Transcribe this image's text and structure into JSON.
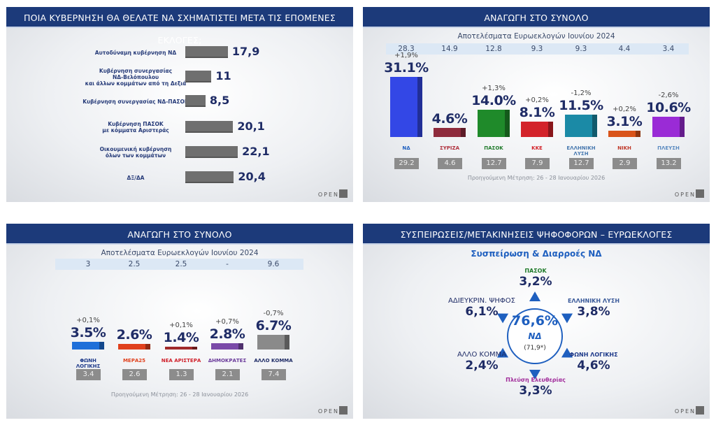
{
  "colors": {
    "header": "#1c3a7a",
    "value_text": "#1f2c66",
    "prev_box": "#8c8c8c",
    "band": "#dce8f5"
  },
  "brand": "OPEN",
  "chart_data": [
    {
      "type": "bar",
      "orientation": "horizontal",
      "title": "ΠΟΙΑ ΚΥΒΕΡΝΗΣΗ ΘΑ ΘΕΛΑΤΕ ΝΑ ΣΧΗΜΑΤΙΣΤΕΙ ΜΕΤΑ ΤΙΣ ΕΠΟΜΕΝΕΣ ΕΚΛΟΓΕΣ;",
      "categories": [
        [
          "Αυτοδύναμη κυβέρνηση ΝΔ"
        ],
        [
          "Κυβέρνηση συνεργασίας",
          "ΝΔ-Βελόπουλου",
          "και άλλων κομμάτων από τη Δεξιά"
        ],
        [
          "Κυβέρνηση συνεργασίας ΝΔ-ΠΑΣΟΚ"
        ],
        [
          "Κυβέρνηση ΠΑΣΟΚ",
          "με κόμματα Αριστεράς"
        ],
        [
          "Οικουμενική κυβέρνηση",
          "όλων των κομμάτων"
        ],
        [
          "ΔΞ/ΔΑ"
        ]
      ],
      "values": [
        17.9,
        11,
        8.5,
        20.1,
        22.1,
        20.4
      ],
      "value_labels": [
        "17,9",
        "11",
        "8,5",
        "20,1",
        "22,1",
        "20,4"
      ],
      "bar_color": "#6f6f6f"
    },
    {
      "type": "bar",
      "title": "ΑΝΑΓΩΓΗ ΣΤΟ ΣΥΝΟΛΟ",
      "subtitle": "Αποτελέσματα Ευρωεκλογών Ιουνίου 2024",
      "euro_2024": [
        "28.3",
        "14.9",
        "12.8",
        "9.3",
        "9.3",
        "4.4",
        "3.4"
      ],
      "parties": [
        "ΝΔ",
        "ΣΥΡΙΖΑ",
        "ΠΑΣΟΚ",
        "ΚΚΕ",
        "ΕΛΛΗΝΙΚΗ ΛΥΣΗ",
        "ΝΙΚΗ",
        "ΠΛΕΥΣΗ"
      ],
      "values": [
        31.1,
        4.6,
        14.0,
        8.1,
        11.5,
        3.1,
        10.6
      ],
      "value_labels": [
        "31.1%",
        "4.6%",
        "14.0%",
        "8.1%",
        "11.5%",
        "3.1%",
        "10.6%"
      ],
      "changes": [
        "+1,9%",
        "",
        "+1,3%",
        "+0,2%",
        "-1,2%",
        "+0,2%",
        "-2,6%"
      ],
      "previous": [
        "29.2",
        "4.6",
        "12.7",
        "7.9",
        "12.7",
        "2.9",
        "13.2"
      ],
      "colors": [
        "#3347e6",
        "#8e2a3c",
        "#1f8a2a",
        "#d3232a",
        "#1b8aa6",
        "#d9541a",
        "#9a2bd6"
      ],
      "logo_colors": [
        "#1e5fbf",
        "#b0303c",
        "#1f7a2a",
        "#d3232a",
        "#4a7ab0",
        "#c03a2a",
        "#5a8ac0"
      ],
      "footnote": "Προηγούμενη Μέτρηση: 26 - 28 Ιανουαρίου 2026"
    },
    {
      "type": "bar",
      "title": "ΑΝΑΓΩΓΗ ΣΤΟ ΣΥΝΟΛΟ",
      "subtitle": "Αποτελέσματα Ευρωεκλογών Ιουνίου 2024",
      "euro_2024": [
        "3",
        "2.5",
        "2.5",
        "-",
        "9.6"
      ],
      "parties": [
        "ΦΩΝΗ ΛΟΓΙΚΗΣ",
        "ΜΕΡΑ25",
        "ΝΕΑ ΑΡΙΣΤΕΡΑ",
        "ΔΗΜΟΚΡΑΤΕΣ",
        "ΑΛΛΟ ΚΟΜΜΑ"
      ],
      "values": [
        3.5,
        2.6,
        1.4,
        2.8,
        6.7
      ],
      "value_labels": [
        "3.5%",
        "2.6%",
        "1.4%",
        "2.8%",
        "6.7%"
      ],
      "changes": [
        "+0,1%",
        "",
        "+0,1%",
        "+0,7%",
        "-0,7%"
      ],
      "previous": [
        "3.4",
        "2.6",
        "1.3",
        "2.1",
        "7.4"
      ],
      "colors": [
        "#1e6fd9",
        "#e0401c",
        "#a02a2a",
        "#7a4aa8",
        "#8a8a8a"
      ],
      "logo_colors": [
        "#1e3a8a",
        "#e0401c",
        "#d0202a",
        "#6a3a9a",
        "#1f2c66"
      ],
      "footnote": "Προηγούμενη Μέτρηση: 26 - 28 Ιανουαρίου 2026"
    },
    {
      "type": "diagram",
      "title": "ΣΥΣΠΕΙΡΩΣΕΙΣ/ΜΕΤΑΚΙΝΗΣΕΙΣ ΨΗΦΟΦΟΡΩΝ – ΕΥΡΩΕΚΛΟΓΕΣ",
      "subtitle": "Συσπείρωση & Διαρροές ΝΔ",
      "center": {
        "value": "76,6%",
        "party": "ΝΔ",
        "previous": "(71,9*)"
      },
      "flows": [
        {
          "label": "ΠΑΣΟΚ",
          "value": "3,2%",
          "is_logo": true,
          "color": "#1f7a2a"
        },
        {
          "label": "ΕΛΛΗΝΙΚΗ ΛΥΣΗ",
          "value": "3,8%",
          "is_logo": true,
          "color": "#3a5a9a"
        },
        {
          "label": "ΦΩΝΗ ΛΟΓΙΚΗΣ",
          "value": "4,6%",
          "is_logo": true,
          "color": "#1e3a8a"
        },
        {
          "label": "Πλεύση Ελευθερίας",
          "value": "3,3%",
          "is_logo": true,
          "color": "#a02a9a"
        },
        {
          "label": "ΑΛΛΟ ΚΟΜΜΑ",
          "value": "2,4%",
          "is_logo": false,
          "color": "#1f2c66"
        },
        {
          "label": "ΑΔΙΕΥΚΡΙΝ. ΨΗΦΟΣ",
          "value": "6,1%",
          "is_logo": false,
          "color": "#1f2c66"
        }
      ]
    }
  ]
}
